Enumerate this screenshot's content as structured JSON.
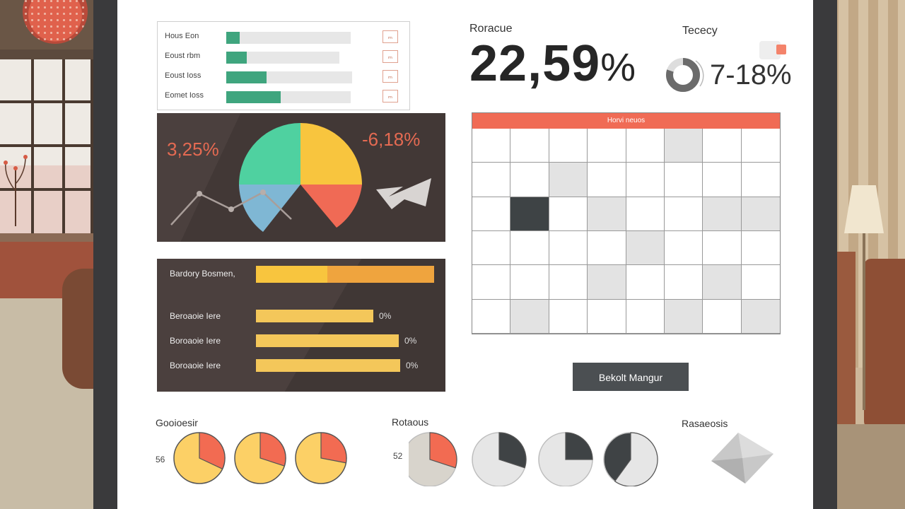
{
  "progress_list": {
    "rows": [
      {
        "label": "Hous Eon",
        "fill": 0.11,
        "badge": "ₘ"
      },
      {
        "label": "Eoust rbm",
        "fill": 0.18,
        "badge": "ₘ"
      },
      {
        "label": "Eoust Ioss",
        "fill": 0.32,
        "badge": "ₘ"
      },
      {
        "label": "Eomet Ioss",
        "fill": 0.44,
        "badge": "ₘ"
      }
    ]
  },
  "stats": {
    "revenue_label": "Roracue",
    "revenue_value": "22,59",
    "revenue_unit": "%",
    "tecency_label": "Tececy",
    "tecency_value": "7-18%",
    "ring_fraction": 0.8
  },
  "pie_panel": {
    "left_value": "3,25%",
    "right_value": "-6,18%",
    "colors": {
      "green": "#4fd1a0",
      "yellow": "#f8c53e",
      "blue": "#7fb7d4",
      "red": "#f06a55"
    }
  },
  "bar_panel": {
    "rows": [
      {
        "label": "Bardory Bosmen,",
        "value": 1.0,
        "pct": ""
      },
      {
        "label": "Beroaoie Iere",
        "value": 0.66,
        "pct": "0%"
      },
      {
        "label": "Boroaoie Iere",
        "value": 0.8,
        "pct": "0%"
      },
      {
        "label": "Boroaoie Iere",
        "value": 0.81,
        "pct": "0%"
      }
    ]
  },
  "calendar": {
    "header": "Horvi neuos",
    "cells": [
      "w",
      "w",
      "w",
      "w",
      "w",
      "l",
      "w",
      "w",
      "w",
      "w",
      "l",
      "w",
      "w",
      "w",
      "w",
      "w",
      "w",
      "d",
      "w",
      "l",
      "w",
      "w",
      "l",
      "l",
      "w",
      "w",
      "w",
      "w",
      "l",
      "w",
      "w",
      "w",
      "w",
      "w",
      "w",
      "l",
      "w",
      "w",
      "l",
      "w",
      "w",
      "l",
      "w",
      "w",
      "w",
      "l",
      "w",
      "l"
    ]
  },
  "button": {
    "label": "Bekolt Mangur"
  },
  "bottom": {
    "group1_label": "Gooioesir",
    "group1_num": "56",
    "group1_fractions": [
      0.32,
      0.3,
      0.28
    ],
    "group2_label": "Rotaous",
    "group2_num": "52",
    "group2_fractions": [
      0.3,
      0.3,
      0.25,
      0.6
    ],
    "group3_label": "Rasaeosis"
  }
}
